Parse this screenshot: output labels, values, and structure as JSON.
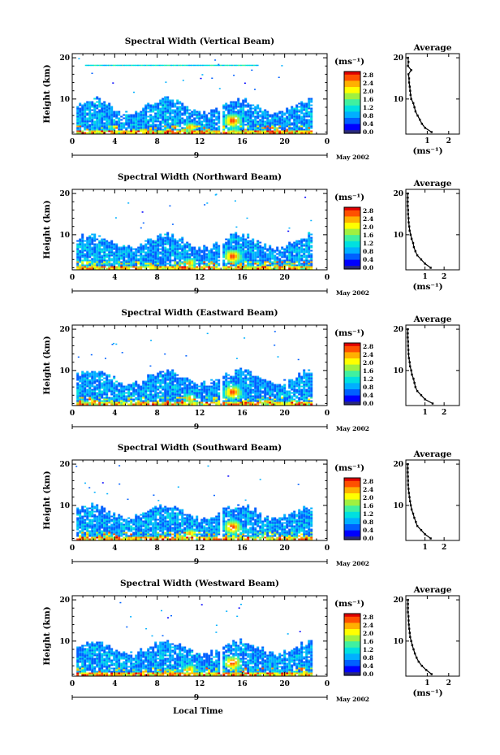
{
  "figure": {
    "xlabel": "Local Time",
    "colorbar_unit": "(ms⁻¹)",
    "colorbar_ticks": [
      "2.8",
      "2.4",
      "2.0",
      "1.6",
      "1.2",
      "0.8",
      "0.4",
      "0.0"
    ],
    "colormap": [
      "#2a2a7a",
      "#0000ff",
      "#0060ff",
      "#00b0ff",
      "#00e0e0",
      "#40f0a0",
      "#a0f040",
      "#ffff00",
      "#ffb000",
      "#ff5000",
      "#e00000"
    ]
  },
  "chart_data": [
    {
      "type": "heatmap",
      "title": "Spectral Width (Vertical Beam)",
      "ylabel": "Height (km)",
      "x_ticks": [
        "0",
        "4",
        "8",
        "12",
        "16",
        "20",
        "0"
      ],
      "y_ticks": [
        "20",
        "10"
      ],
      "xlim": [
        0,
        24
      ],
      "ylim": [
        1.5,
        21
      ],
      "date_center": "9",
      "date_label": "May 2002",
      "average": {
        "title": "Average",
        "xlabel": "(ms⁻¹)",
        "x_ticks": [
          "1",
          "2"
        ],
        "xlim": [
          0,
          2.5
        ],
        "heights": [
          2,
          3,
          4,
          5,
          6,
          7,
          8,
          9,
          10,
          11,
          12,
          13,
          14,
          15,
          16,
          17,
          18,
          19,
          20
        ],
        "values": [
          1.2,
          0.9,
          0.75,
          0.65,
          0.55,
          0.45,
          0.4,
          0.35,
          0.25,
          0.22,
          0.2,
          0.18,
          0.15,
          0.15,
          0.12,
          0.25,
          0.1,
          0.12,
          0.1
        ]
      }
    },
    {
      "type": "heatmap",
      "title": "Spectral Width (Northward Beam)",
      "ylabel": "Height (km)",
      "x_ticks": [
        "0",
        "4",
        "8",
        "12",
        "16",
        "20",
        "0"
      ],
      "y_ticks": [
        "20",
        "10"
      ],
      "xlim": [
        0,
        24
      ],
      "ylim": [
        1.5,
        21
      ],
      "date_center": "9",
      "date_label": "May 2002",
      "average": {
        "title": "Average",
        "xlabel": "(ms⁻¹)",
        "x_ticks": [
          "1",
          "2"
        ],
        "xlim": [
          0,
          2.8
        ],
        "heights": [
          2,
          3,
          4,
          5,
          6,
          7,
          8,
          9,
          10,
          11,
          12,
          13,
          14,
          15,
          16,
          17,
          18,
          19,
          20
        ],
        "values": [
          1.3,
          1.0,
          0.8,
          0.6,
          0.5,
          0.42,
          0.38,
          0.3,
          0.25,
          0.2,
          0.18,
          0.15,
          0.14,
          0.12,
          0.12,
          0.1,
          0.1,
          0.1,
          0.1
        ]
      }
    },
    {
      "type": "heatmap",
      "title": "Spectral Width (Eastward Beam)",
      "ylabel": "Height (km)",
      "x_ticks": [
        "0",
        "4",
        "8",
        "12",
        "16",
        "20",
        "0"
      ],
      "y_ticks": [
        "20",
        "10"
      ],
      "xlim": [
        0,
        24
      ],
      "ylim": [
        1.5,
        21
      ],
      "date_center": "9",
      "date_label": "May 2002",
      "average": {
        "title": "Average",
        "xlabel": "",
        "x_ticks": [
          "1",
          "2"
        ],
        "xlim": [
          0,
          2.8
        ],
        "heights": [
          2,
          3,
          4,
          5,
          6,
          7,
          8,
          9,
          10,
          11,
          12,
          13,
          14,
          15,
          16,
          17,
          18,
          19,
          20
        ],
        "values": [
          1.4,
          1.0,
          0.8,
          0.6,
          0.5,
          0.45,
          0.4,
          0.32,
          0.28,
          0.22,
          0.2,
          0.16,
          0.14,
          0.13,
          0.12,
          0.12,
          0.1,
          0.1,
          0.1
        ]
      }
    },
    {
      "type": "heatmap",
      "title": "Spectral Width (Southward Beam)",
      "ylabel": "Height (km)",
      "x_ticks": [
        "0",
        "4",
        "8",
        "12",
        "16",
        "20",
        "0"
      ],
      "y_ticks": [
        "20",
        "10"
      ],
      "xlim": [
        0,
        24
      ],
      "ylim": [
        1.5,
        21
      ],
      "date_center": "9",
      "date_label": "May 2002",
      "average": {
        "title": "Average",
        "xlabel": "",
        "x_ticks": [
          "1",
          "2"
        ],
        "xlim": [
          0,
          2.8
        ],
        "heights": [
          2,
          3,
          4,
          5,
          6,
          7,
          8,
          9,
          10,
          11,
          12,
          13,
          14,
          15,
          16,
          17,
          18,
          19,
          20
        ],
        "values": [
          1.3,
          1.0,
          0.8,
          0.6,
          0.52,
          0.44,
          0.38,
          0.3,
          0.26,
          0.22,
          0.19,
          0.16,
          0.14,
          0.12,
          0.12,
          0.11,
          0.1,
          0.1,
          0.1
        ]
      }
    },
    {
      "type": "heatmap",
      "title": "Spectral Width (Westward Beam)",
      "ylabel": "Height (km)",
      "x_ticks": [
        "0",
        "4",
        "8",
        "12",
        "16",
        "20",
        "0"
      ],
      "y_ticks": [
        "20",
        "10"
      ],
      "xlim": [
        0,
        24
      ],
      "ylim": [
        1.5,
        21
      ],
      "date_center": "9",
      "date_label": "May 2002",
      "average": {
        "title": "Average",
        "xlabel": "(ms⁻¹)",
        "x_ticks": [
          "1",
          "2"
        ],
        "xlim": [
          0,
          2.5
        ],
        "heights": [
          2,
          3,
          4,
          5,
          6,
          7,
          8,
          9,
          10,
          11,
          12,
          13,
          14,
          15,
          16,
          17,
          18,
          19,
          20
        ],
        "values": [
          1.2,
          0.95,
          0.75,
          0.6,
          0.5,
          0.42,
          0.36,
          0.3,
          0.25,
          0.2,
          0.18,
          0.16,
          0.14,
          0.13,
          0.12,
          0.1,
          0.1,
          0.1,
          0.1
        ]
      }
    }
  ]
}
